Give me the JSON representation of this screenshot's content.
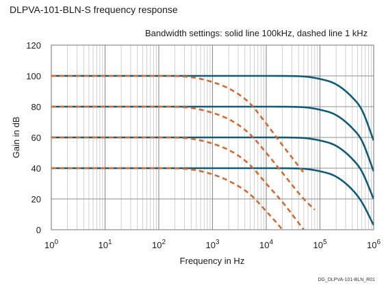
{
  "chart_data": {
    "type": "line",
    "title": "DLPVA-101-BLN-S frequency response",
    "subtitle": "Bandwidth settings: solid line 100kHz, dashed line 1 kHz",
    "xlabel": "Frequency in Hz",
    "ylabel": "Gain in dB",
    "xscale": "log",
    "xlim": [
      1,
      1000000
    ],
    "ylim": [
      0,
      120
    ],
    "x_ticks": [
      {
        "base": "10",
        "exp": "0"
      },
      {
        "base": "10",
        "exp": "1"
      },
      {
        "base": "10",
        "exp": "2"
      },
      {
        "base": "10",
        "exp": "3"
      },
      {
        "base": "10",
        "exp": "4"
      },
      {
        "base": "10",
        "exp": "5"
      },
      {
        "base": "10",
        "exp": "6"
      }
    ],
    "y_ticks": [
      "0",
      "20",
      "40",
      "60",
      "80",
      "100",
      "120"
    ],
    "grid": true,
    "legend": "none",
    "colors": {
      "solid": "#0e5a78",
      "dashed": "#d06a32",
      "grid_major": "#8c8c8c",
      "grid_minor": "#c4c4c4"
    },
    "series": [
      {
        "style": "solid",
        "x": [
          1,
          10000,
          40000,
          100000,
          200000,
          400000,
          600000,
          1000000
        ],
        "values": [
          100,
          100,
          99.8,
          98,
          94.5,
          86,
          78,
          58
        ]
      },
      {
        "style": "solid",
        "x": [
          1,
          10000,
          40000,
          100000,
          200000,
          400000,
          600000,
          1000000
        ],
        "values": [
          80,
          80,
          79.8,
          78,
          74.5,
          66,
          58,
          38
        ]
      },
      {
        "style": "solid",
        "x": [
          1,
          10000,
          40000,
          100000,
          200000,
          400000,
          600000,
          1000000
        ],
        "values": [
          60,
          60,
          59.8,
          58,
          54.5,
          46,
          38,
          20
        ]
      },
      {
        "style": "solid",
        "x": [
          1,
          10000,
          40000,
          100000,
          200000,
          400000,
          600000,
          1000000
        ],
        "values": [
          40,
          40,
          39.8,
          38,
          34.5,
          26,
          18,
          3
        ]
      },
      {
        "style": "dashed",
        "x": [
          1,
          100,
          300,
          1000,
          2500,
          5000,
          10000,
          20000,
          50000
        ],
        "values": [
          100,
          100,
          99.6,
          96,
          90,
          82,
          69,
          55,
          37
        ]
      },
      {
        "style": "dashed",
        "x": [
          1,
          100,
          300,
          1000,
          2500,
          5000,
          10000,
          20000,
          50000,
          80000
        ],
        "values": [
          80,
          80,
          79.6,
          76,
          70,
          62,
          50,
          37,
          20,
          13
        ]
      },
      {
        "style": "dashed",
        "x": [
          1,
          100,
          300,
          1000,
          2500,
          5000,
          10000,
          20000,
          50000
        ],
        "values": [
          60,
          60,
          59.6,
          56,
          50,
          42,
          30,
          18,
          0
        ]
      },
      {
        "style": "dashed",
        "x": [
          1,
          100,
          300,
          1000,
          2500,
          5000,
          10000,
          20000,
          50000
        ],
        "values": [
          40,
          40,
          39.6,
          36,
          30,
          23,
          12,
          0,
          -19
        ]
      }
    ]
  },
  "footer": "DG_DLPVA-101-BLN_R01"
}
